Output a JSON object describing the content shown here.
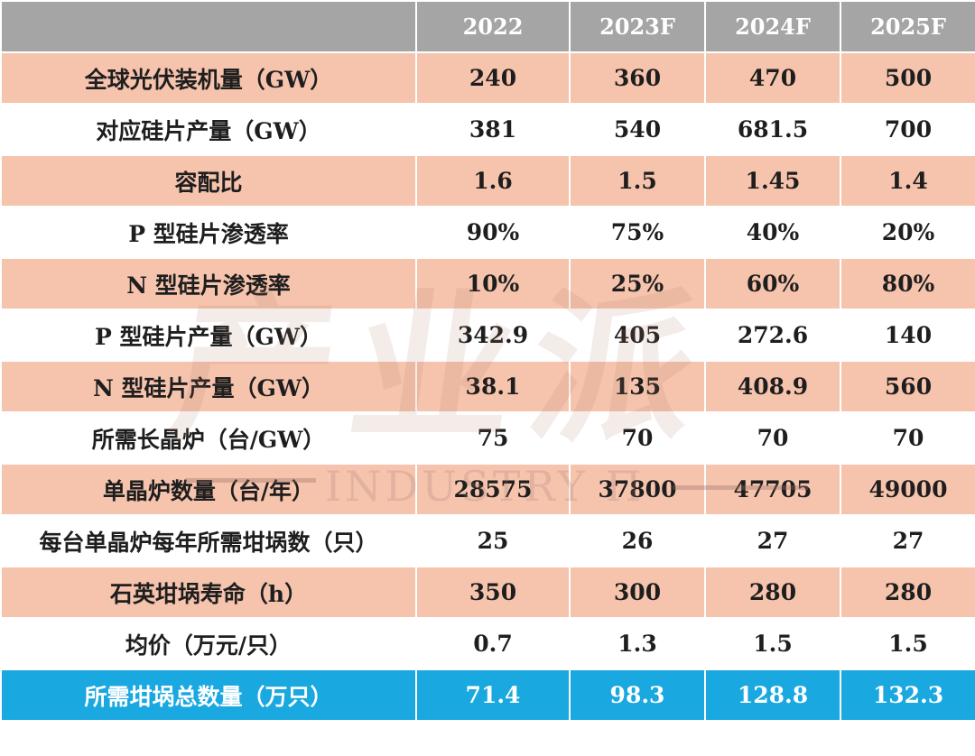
{
  "chart_data": {
    "type": "table",
    "columns": [
      "",
      "2022",
      "2023F",
      "2024F",
      "2025F"
    ],
    "rows": [
      {
        "label": "全球光伏装机量（GW）",
        "values": [
          "240",
          "360",
          "470",
          "500"
        ]
      },
      {
        "label": "对应硅片产量（GW）",
        "values": [
          "381",
          "540",
          "681.5",
          "700"
        ]
      },
      {
        "label": "容配比",
        "values": [
          "1.6",
          "1.5",
          "1.45",
          "1.4"
        ]
      },
      {
        "label": "P 型硅片渗透率",
        "values": [
          "90%",
          "75%",
          "40%",
          "20%"
        ]
      },
      {
        "label": "N 型硅片渗透率",
        "values": [
          "10%",
          "25%",
          "60%",
          "80%"
        ]
      },
      {
        "label": "P 型硅片产量（GW）",
        "values": [
          "342.9",
          "405",
          "272.6",
          "140"
        ]
      },
      {
        "label": "N 型硅片产量（GW）",
        "values": [
          "38.1",
          "135",
          "408.9",
          "560"
        ]
      },
      {
        "label": "所需长晶炉（台/GW）",
        "values": [
          "75",
          "70",
          "70",
          "70"
        ]
      },
      {
        "label": "单晶炉数量（台/年）",
        "values": [
          "28575",
          "37800",
          "47705",
          "49000"
        ]
      },
      {
        "label": "每台单晶炉每年所需坩埚数（只）",
        "values": [
          "25",
          "26",
          "27",
          "27"
        ]
      },
      {
        "label": "石英坩埚寿命（h）",
        "values": [
          "350",
          "300",
          "280",
          "280"
        ]
      },
      {
        "label": "均价（万元/只）",
        "values": [
          "0.7",
          "1.3",
          "1.5",
          "1.5"
        ]
      },
      {
        "label": "所需坩埚总数量（万只）",
        "values": [
          "71.4",
          "98.3",
          "128.8",
          "132.3"
        ]
      }
    ],
    "colors": {
      "header_bg": "#a5a5a5",
      "shaded_row_bg": "#f6c3ad",
      "total_row_bg": "#19a8e0"
    }
  },
  "watermark": {
    "main": "产业派",
    "sub": "INDUSTRY Π"
  }
}
